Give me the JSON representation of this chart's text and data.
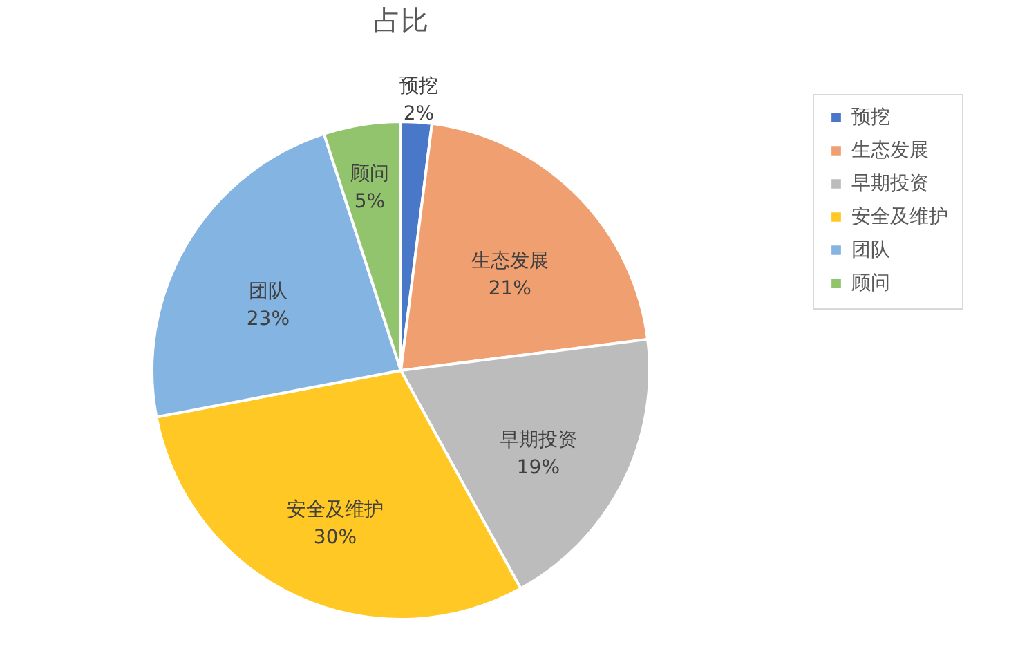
{
  "chart_data": {
    "type": "pie",
    "title": "占比",
    "categories": [
      "预挖",
      "生态发展",
      "早期投资",
      "安全及维护",
      "团队",
      "顾问"
    ],
    "values": [
      2,
      21,
      19,
      30,
      23,
      5
    ],
    "value_labels": [
      "2%",
      "21%",
      "19%",
      "30%",
      "23%",
      "5%"
    ],
    "colors": [
      "#4a78c8",
      "#f0a070",
      "#bcbcbc",
      "#ffc824",
      "#84b4e2",
      "#92c46e"
    ],
    "legend": "right"
  }
}
